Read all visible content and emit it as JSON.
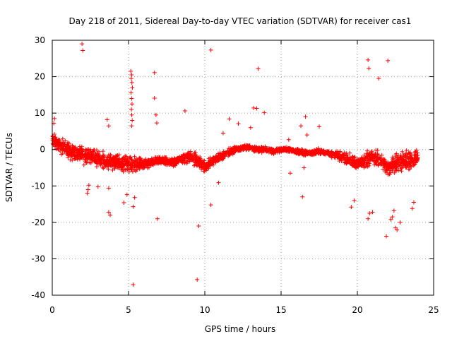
{
  "chart_data": {
    "type": "scatter",
    "title": "Day 218 of 2011, Sidereal Day-to-day VTEC variation (SDTVAR) for receiver cas1",
    "xlabel": "GPS time / hours",
    "ylabel": "SDTVAR / TECUs",
    "xlim": [
      0,
      25
    ],
    "ylim": [
      -40,
      30
    ],
    "xticks": [
      0,
      5,
      10,
      15,
      20,
      25
    ],
    "yticks": [
      -40,
      -30,
      -20,
      -10,
      0,
      10,
      20,
      30
    ],
    "xtick_labels": [
      "0",
      "5",
      "10",
      "15",
      "20",
      "25"
    ],
    "ytick_labels": [
      "-40",
      "-30",
      "-20",
      "-10",
      "0",
      "10",
      "20",
      "30"
    ],
    "grid": true,
    "marker": "+",
    "colors": {
      "series": "#ff0000",
      "grid": "#a0a0a0",
      "axes": "#000000"
    },
    "series": [
      {
        "name": "SDTVAR",
        "baseline": {
          "x": [
            0,
            0.2,
            0.5,
            1,
            1.5,
            2,
            2.5,
            3,
            3.5,
            4,
            4.5,
            5,
            5.5,
            6,
            6.5,
            7,
            7.5,
            8,
            8.5,
            9,
            9.5,
            10,
            10.5,
            11,
            11.5,
            12,
            12.5,
            13,
            13.5,
            14,
            14.5,
            15,
            15.5,
            16,
            16.5,
            17,
            17.5,
            18,
            18.5,
            19,
            19.5,
            20,
            20.5,
            21,
            21.5,
            22,
            22.5,
            23,
            23.5,
            24
          ],
          "y": [
            3,
            2,
            1,
            0,
            -1,
            -1.5,
            -2,
            -2.5,
            -3,
            -3.5,
            -3.8,
            -4,
            -4.2,
            -4,
            -3.5,
            -3,
            -3.2,
            -3.5,
            -2.5,
            -2,
            -3,
            -5,
            -3,
            -2,
            -1,
            0,
            0.5,
            0.5,
            0,
            0,
            -0.5,
            0,
            0,
            -0.5,
            -1,
            -1,
            -0.5,
            -1,
            -1.5,
            -2,
            -3,
            -4,
            -3,
            -2,
            -3,
            -5,
            -4,
            -3,
            -3,
            -2
          ],
          "spread": [
            3,
            3,
            3,
            3,
            3,
            3,
            3,
            3,
            3,
            3,
            3,
            3,
            3,
            2,
            1.5,
            1.5,
            1.5,
            1.5,
            1.5,
            2,
            2.5,
            2,
            1.5,
            1.5,
            1.5,
            1,
            1,
            1,
            1,
            1,
            1,
            0.8,
            0.8,
            1,
            1,
            1,
            1,
            1,
            1.5,
            2,
            2.5,
            2,
            3,
            3,
            3,
            3,
            4,
            4,
            3,
            3
          ]
        },
        "outliers": [
          [
            1.95,
            29
          ],
          [
            2.0,
            27.2
          ],
          [
            10.4,
            27.3
          ],
          [
            13.5,
            22.2
          ],
          [
            20.7,
            24.6
          ],
          [
            20.75,
            22.3
          ],
          [
            21.4,
            19.5
          ],
          [
            22.0,
            24.4
          ],
          [
            6.7,
            21.1
          ],
          [
            6.7,
            14.1
          ],
          [
            6.8,
            9.5
          ],
          [
            6.85,
            7.3
          ],
          [
            8.7,
            10.6
          ],
          [
            13.2,
            11.4
          ],
          [
            13.4,
            11.3
          ],
          [
            13.9,
            10.1
          ],
          [
            12.2,
            7.1
          ],
          [
            13.0,
            6.0
          ],
          [
            11.2,
            4.5
          ],
          [
            11.6,
            8.4
          ],
          [
            16.6,
            9.0
          ],
          [
            16.3,
            6.5
          ],
          [
            17.5,
            6.3
          ],
          [
            16.7,
            4.0
          ],
          [
            15.5,
            2.7
          ],
          [
            3.6,
            8.2
          ],
          [
            3.7,
            6.5
          ],
          [
            0.15,
            8.5
          ],
          [
            0.1,
            7.2
          ],
          [
            5.15,
            21.5
          ],
          [
            5.2,
            20.5
          ],
          [
            5.18,
            19.5
          ],
          [
            5.22,
            18.4
          ],
          [
            5.25,
            17.0
          ],
          [
            5.17,
            15.6
          ],
          [
            5.2,
            14.0
          ],
          [
            5.23,
            12.5
          ],
          [
            5.19,
            11.0
          ],
          [
            5.21,
            9.5
          ],
          [
            5.24,
            8.0
          ],
          [
            5.2,
            6.5
          ],
          [
            5.3,
            -37.1
          ],
          [
            9.5,
            -35.7
          ],
          [
            9.6,
            -21.0
          ],
          [
            6.9,
            -19.0
          ],
          [
            3.7,
            -17.2
          ],
          [
            3.8,
            -18.0
          ],
          [
            4.7,
            -14.6
          ],
          [
            5.3,
            -15.7
          ],
          [
            5.4,
            -13.2
          ],
          [
            4.9,
            -12.4
          ],
          [
            10.4,
            -15.2
          ],
          [
            10.9,
            -9.1
          ],
          [
            3.0,
            -10.2
          ],
          [
            2.3,
            -12.0
          ],
          [
            2.35,
            -11.0
          ],
          [
            2.4,
            -9.8
          ],
          [
            3.7,
            -10.6
          ],
          [
            16.4,
            -13.0
          ],
          [
            15.6,
            -6.5
          ],
          [
            16.5,
            -5.0
          ],
          [
            19.6,
            -15.8
          ],
          [
            19.8,
            -14.0
          ],
          [
            20.8,
            -17.5
          ],
          [
            20.7,
            -19.0
          ],
          [
            21.0,
            -17.2
          ],
          [
            21.9,
            -23.8
          ],
          [
            22.5,
            -21.5
          ],
          [
            22.6,
            -22.1
          ],
          [
            22.8,
            -20.0
          ],
          [
            22.2,
            -19.2
          ],
          [
            22.3,
            -18.5
          ],
          [
            22.4,
            -16.8
          ],
          [
            23.6,
            -16.2
          ],
          [
            23.7,
            -14.5
          ]
        ]
      }
    ]
  }
}
